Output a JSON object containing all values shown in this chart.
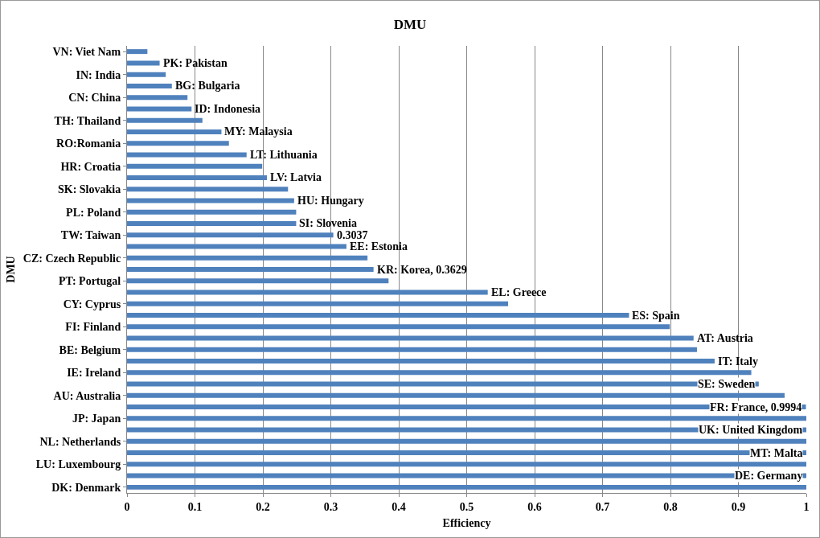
{
  "chart_data": {
    "type": "bar",
    "orientation": "horizontal",
    "title": "DMU",
    "xlabel": "Efficiency",
    "ylabel": "DMU",
    "categories": [
      "VN: Viet Nam",
      null,
      "IN: India",
      null,
      "CN: China",
      null,
      "TH: Thailand",
      null,
      "RO:Romania",
      null,
      "HR: Croatia",
      null,
      "SK: Slovakia",
      null,
      "PL: Poland",
      null,
      "TW: Taiwan",
      null,
      "CZ: Czech Republic",
      null,
      "PT: Portugal",
      null,
      "CY: Cyprus",
      null,
      "FI: Finland",
      null,
      "BE: Belgium",
      null,
      "IE: Ireland",
      null,
      "AU: Australia",
      null,
      "JP: Japan",
      null,
      "NL: Netherlands",
      null,
      "LU: Luxembourg",
      null,
      "DK: Denmark"
    ],
    "values": [
      0.03,
      0.048,
      0.057,
      0.066,
      0.089,
      0.095,
      0.111,
      0.139,
      0.15,
      0.176,
      0.199,
      0.206,
      0.237,
      0.246,
      0.249,
      0.249,
      0.3037,
      0.323,
      0.354,
      0.3629,
      0.385,
      0.531,
      0.561,
      0.739,
      0.799,
      0.834,
      0.839,
      0.865,
      0.919,
      0.93,
      0.968,
      0.9994,
      1,
      1,
      1,
      1,
      1,
      1,
      1
    ],
    "value_labels": [
      null,
      "PK: Pakistan",
      null,
      "BG: Bulgaria",
      null,
      "ID: Indonesia",
      null,
      "MY: Malaysia",
      null,
      "LT: Lithuania",
      null,
      "LV: Latvia",
      null,
      "HU: Hungary",
      null,
      "SI: Slovenia",
      "0.3037",
      "EE: Estonia",
      null,
      "KR: Korea, 0.3629",
      null,
      "EL: Greece",
      null,
      "ES: Spain",
      null,
      "AT: Austria",
      null,
      "IT: Italy",
      null,
      "SE: Sweden",
      null,
      "FR: France, 0.9994",
      null,
      "UK: United Kingdom",
      null,
      "MT: Malta",
      null,
      "DE: Germany",
      null
    ],
    "color": "#4f81bd",
    "xlim": [
      0,
      1
    ],
    "xticks": [
      0,
      0.1,
      0.2,
      0.3,
      0.4,
      0.5,
      0.6,
      0.7,
      0.8,
      0.9,
      1
    ],
    "grid": "x",
    "legend": false
  }
}
